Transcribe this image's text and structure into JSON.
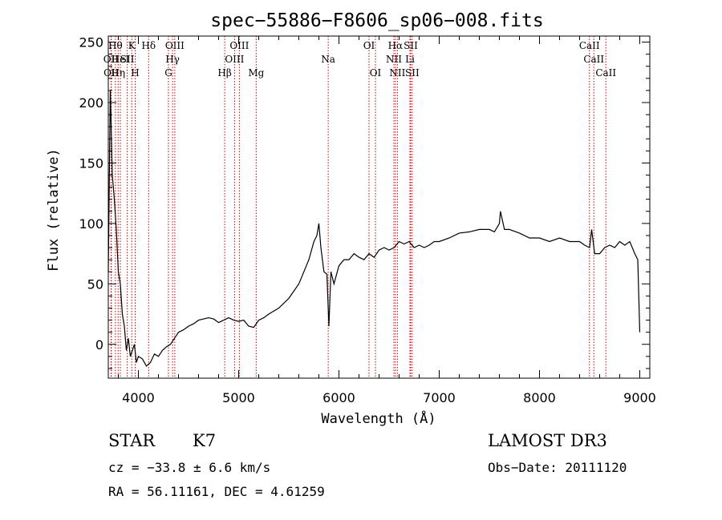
{
  "chart_data": {
    "type": "line",
    "title": "spec−55886−F8606_sp06−008.fits",
    "xlabel": "Wavelength (Å)",
    "ylabel": "Flux (relative)",
    "xlim": [
      3700,
      9100
    ],
    "ylim": [
      -28,
      255
    ],
    "xticks": [
      4000,
      5000,
      6000,
      7000,
      8000,
      9000
    ],
    "yticks": [
      0,
      50,
      100,
      150,
      200,
      250
    ],
    "line_color": "#000000",
    "marker_color": "#cc0000",
    "series": [
      {
        "x": [
          3700,
          3720,
          3740,
          3760,
          3780,
          3800,
          3820,
          3840,
          3860,
          3880,
          3900,
          3920,
          3940,
          3960,
          3980,
          4000,
          4040,
          4080,
          4120,
          4160,
          4200,
          4240,
          4280,
          4320,
          4360,
          4400,
          4450,
          4500,
          4550,
          4600,
          4650,
          4700,
          4750,
          4800,
          4850,
          4900,
          4950,
          5000,
          5050,
          5100,
          5150,
          5200,
          5250,
          5300,
          5400,
          5500,
          5600,
          5650,
          5700,
          5750,
          5780,
          5800,
          5820,
          5850,
          5880,
          5900,
          5920,
          5950,
          6000,
          6050,
          6100,
          6150,
          6200,
          6250,
          6300,
          6350,
          6400,
          6450,
          6500,
          6550,
          6600,
          6650,
          6700,
          6750,
          6800,
          6850,
          6900,
          6950,
          7000,
          7100,
          7200,
          7300,
          7400,
          7500,
          7550,
          7600,
          7610,
          7650,
          7700,
          7800,
          7900,
          8000,
          8100,
          8200,
          8300,
          8400,
          8450,
          8500,
          8520,
          8550,
          8600,
          8650,
          8700,
          8750,
          8800,
          8850,
          8900,
          8950,
          8980,
          9000
        ],
        "y": [
          60,
          210,
          140,
          120,
          95,
          60,
          50,
          25,
          15,
          -5,
          5,
          -10,
          -5,
          0,
          -15,
          -10,
          -12,
          -18,
          -15,
          -8,
          -10,
          -5,
          -2,
          0,
          5,
          10,
          12,
          15,
          17,
          20,
          21,
          22,
          21,
          18,
          20,
          22,
          20,
          19,
          20,
          15,
          14,
          20,
          22,
          25,
          30,
          38,
          50,
          60,
          70,
          85,
          90,
          100,
          80,
          60,
          58,
          15,
          60,
          50,
          65,
          70,
          70,
          75,
          72,
          70,
          75,
          72,
          78,
          80,
          78,
          80,
          85,
          83,
          85,
          80,
          82,
          80,
          82,
          85,
          85,
          88,
          92,
          93,
          95,
          95,
          93,
          100,
          110,
          95,
          95,
          92,
          88,
          88,
          85,
          88,
          85,
          85,
          82,
          80,
          95,
          75,
          75,
          80,
          82,
          80,
          85,
          82,
          85,
          75,
          70,
          10
        ]
      }
    ],
    "line_markers": [
      {
        "wavelength": 3727,
        "row": 2,
        "label": "OII"
      },
      {
        "wavelength": 3730,
        "row": 3,
        "label": "OII"
      },
      {
        "wavelength": 3771,
        "row": 1,
        "label": "Hθ"
      },
      {
        "wavelength": 3798,
        "row": 3,
        "label": "Hη"
      },
      {
        "wavelength": 3820,
        "row": 2,
        "label": "HeI"
      },
      {
        "wavelength": 3889,
        "row": 2,
        "label": "SII"
      },
      {
        "wavelength": 3934,
        "row": 1,
        "label": "K"
      },
      {
        "wavelength": 3968,
        "row": 3,
        "label": "H"
      },
      {
        "wavelength": 4102,
        "row": 1,
        "label": "Hδ"
      },
      {
        "wavelength": 4300,
        "row": 3,
        "label": "G"
      },
      {
        "wavelength": 4341,
        "row": 2,
        "label": "Hγ"
      },
      {
        "wavelength": 4363,
        "row": 1,
        "label": "OIII"
      },
      {
        "wavelength": 4861,
        "row": 3,
        "label": "Hβ"
      },
      {
        "wavelength": 4959,
        "row": 2,
        "label": "OIII"
      },
      {
        "wavelength": 5007,
        "row": 1,
        "label": "OIII"
      },
      {
        "wavelength": 5175,
        "row": 3,
        "label": "Mg"
      },
      {
        "wavelength": 5893,
        "row": 2,
        "label": "Na"
      },
      {
        "wavelength": 6300,
        "row": 1,
        "label": "OI"
      },
      {
        "wavelength": 6364,
        "row": 3,
        "label": "OI"
      },
      {
        "wavelength": 6548,
        "row": 2,
        "label": "NII"
      },
      {
        "wavelength": 6563,
        "row": 1,
        "label": "Hα"
      },
      {
        "wavelength": 6583,
        "row": 3,
        "label": "NII"
      },
      {
        "wavelength": 6708,
        "row": 2,
        "label": "Li"
      },
      {
        "wavelength": 6716,
        "row": 1,
        "label": "SII"
      },
      {
        "wavelength": 6731,
        "row": 3,
        "label": "SII"
      },
      {
        "wavelength": 8498,
        "row": 1,
        "label": "CaII"
      },
      {
        "wavelength": 8542,
        "row": 2,
        "label": "CaII"
      },
      {
        "wavelength": 8662,
        "row": 3,
        "label": "CaII"
      }
    ]
  },
  "info": {
    "class_label": "STAR",
    "subclass": "K7",
    "survey": "LAMOST DR3",
    "cz": "cz = −33.8 ± 6.6 km/s",
    "obs_date": "Obs−Date: 20111120",
    "radec": "RA =  56.11161, DEC =   4.61259"
  }
}
